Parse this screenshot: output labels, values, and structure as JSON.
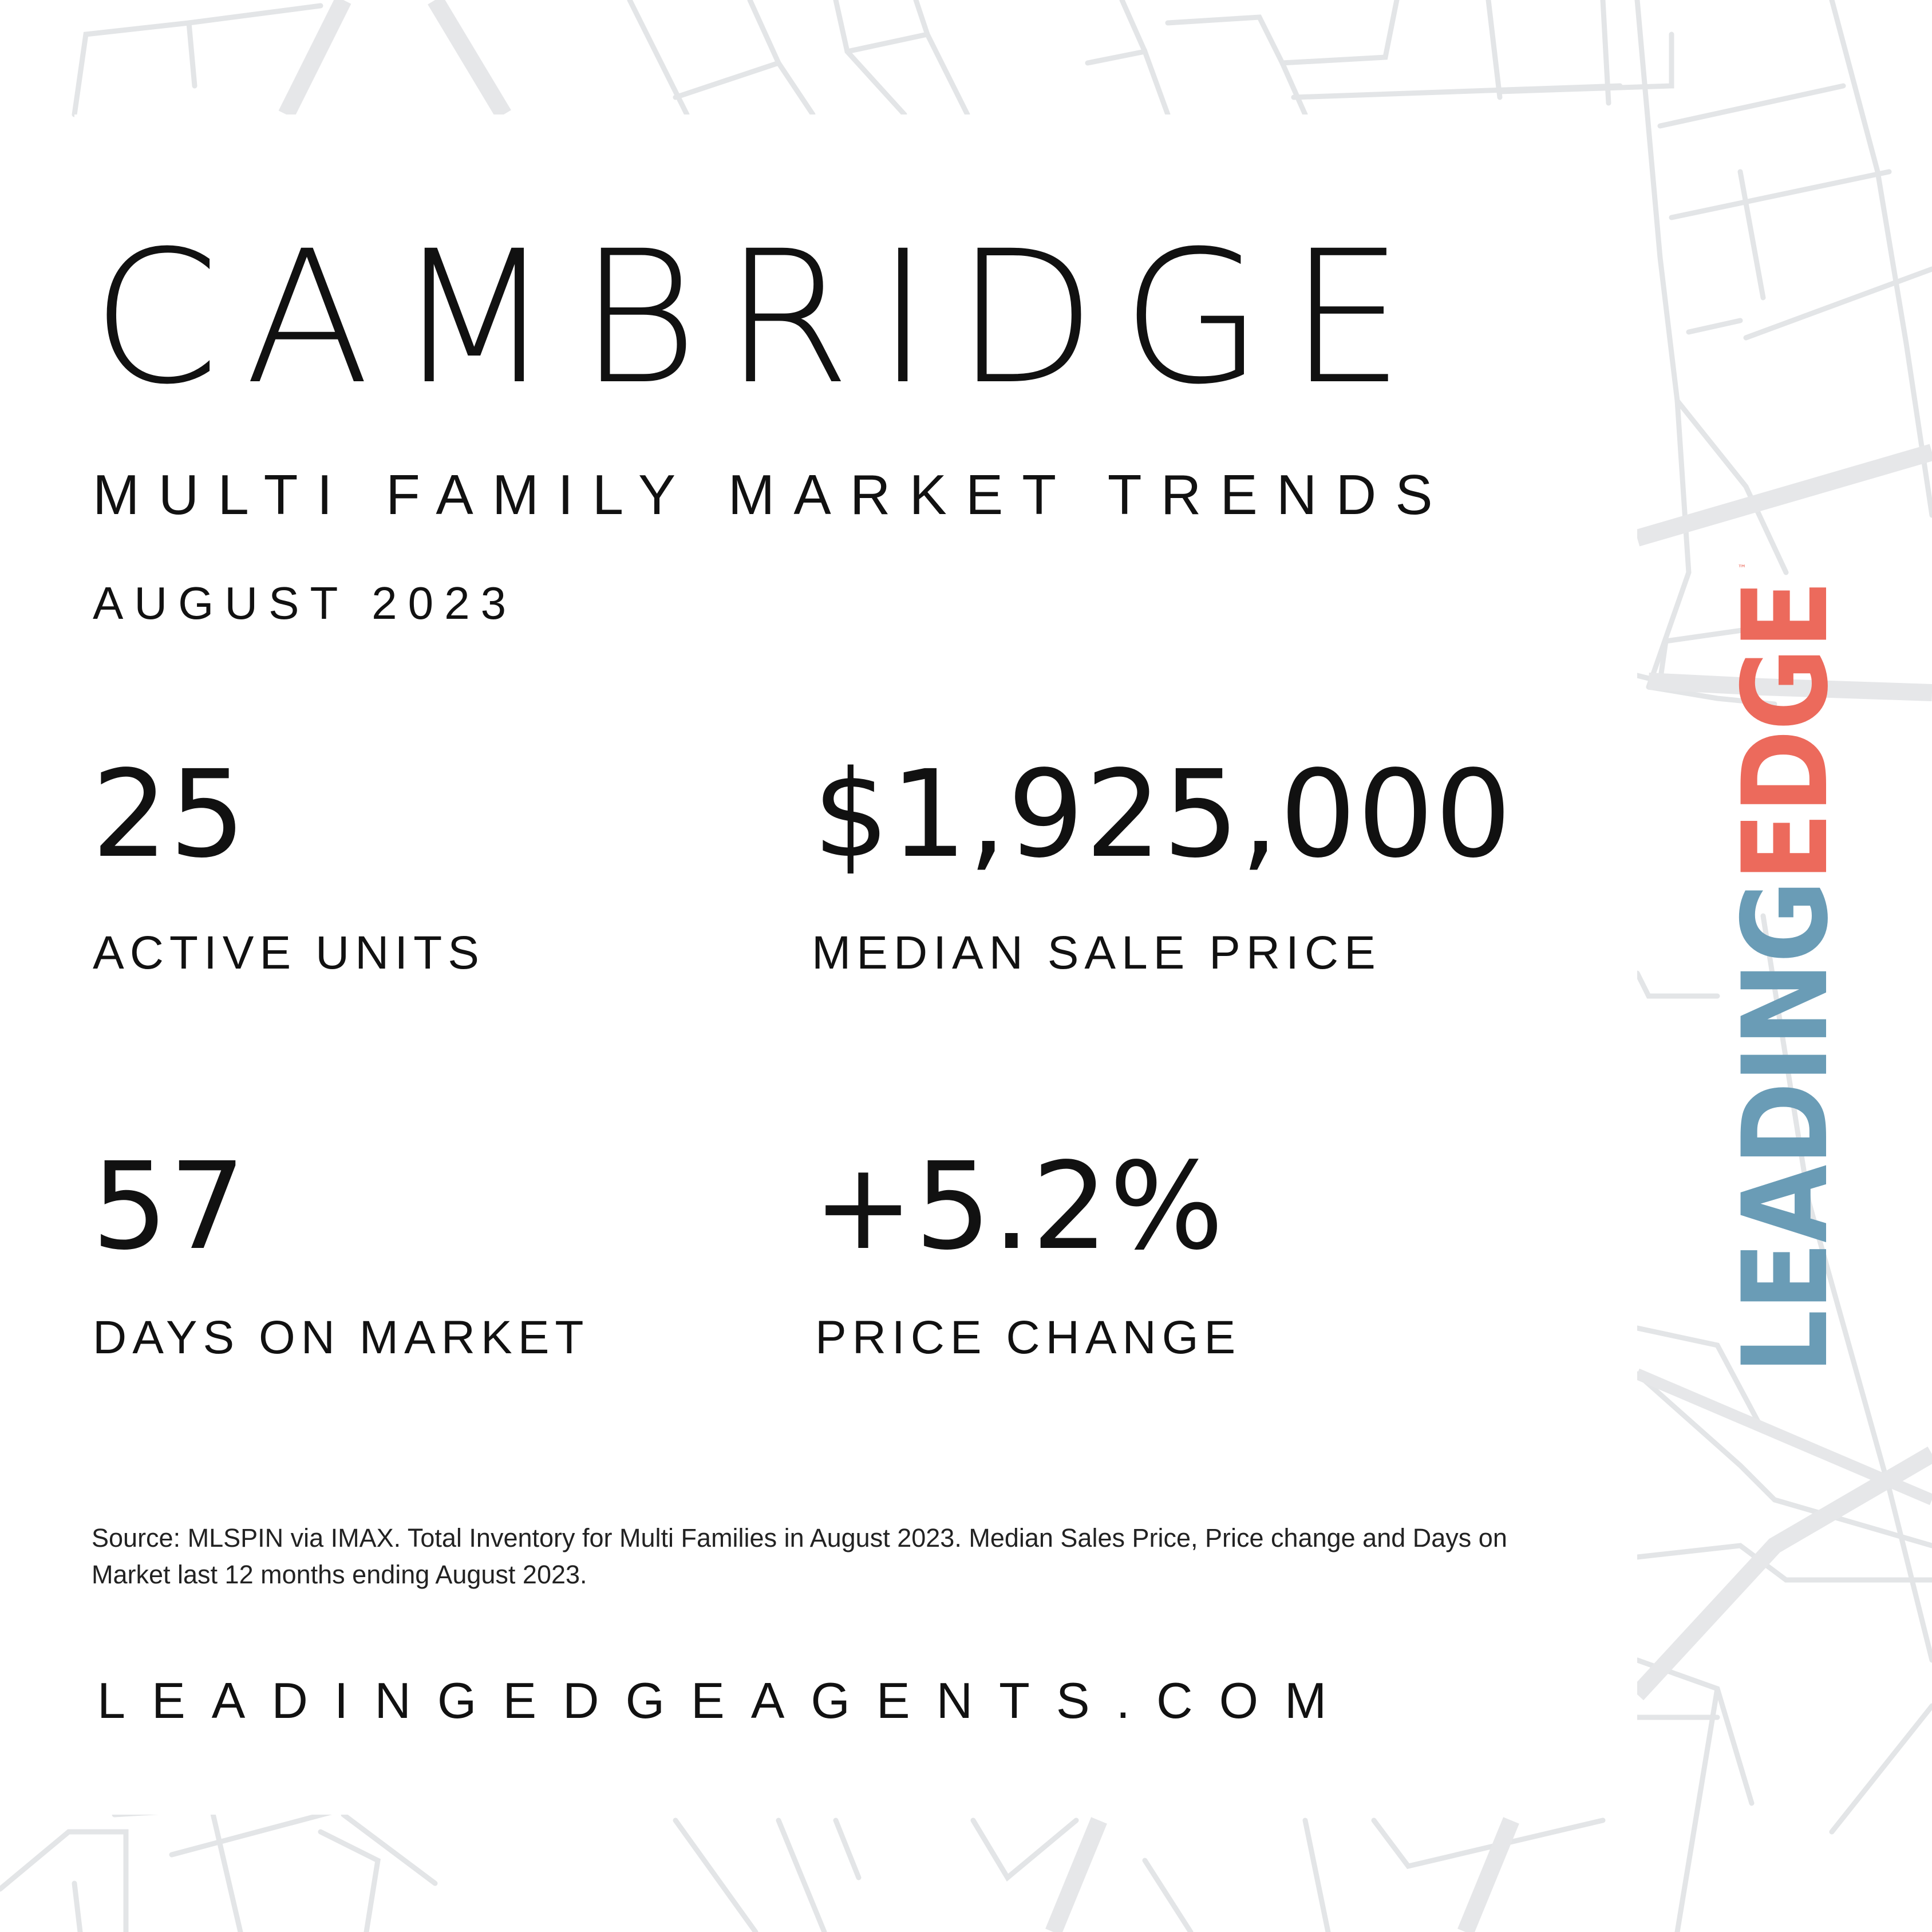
{
  "header": {
    "city": "CAMBRIDGE",
    "subtitle": "MULTI FAMILY MARKET TRENDS",
    "period": "AUGUST 2023"
  },
  "stats": {
    "active_units": {
      "value": "25",
      "label": "ACTIVE UNITS"
    },
    "median_sale_price": {
      "value": "$1,925,000",
      "label": "MEDIAN SALE PRICE"
    },
    "days_on_market": {
      "value": "57",
      "label": "DAYS ON MARKET"
    },
    "price_change": {
      "value": "+5.2%",
      "label": "PRICE CHANGE"
    }
  },
  "footer": {
    "source_note": "Source: MLSPIN via IMAX. Total Inventory for Multi Families in August 2023. Median Sales Price, Price change and Days on Market last 12 months ending August 2023.",
    "website": "LEADINGEDGEAGENTS.COM"
  },
  "logo": {
    "part1": "LEADING",
    "part2": "EDGE",
    "mark": "™",
    "color_part1": "#6a9cb6",
    "color_part2": "#ec6a5c"
  },
  "colors": {
    "background": "#ffffff",
    "map_lines": "#e3e5e7",
    "text": "#111111"
  }
}
